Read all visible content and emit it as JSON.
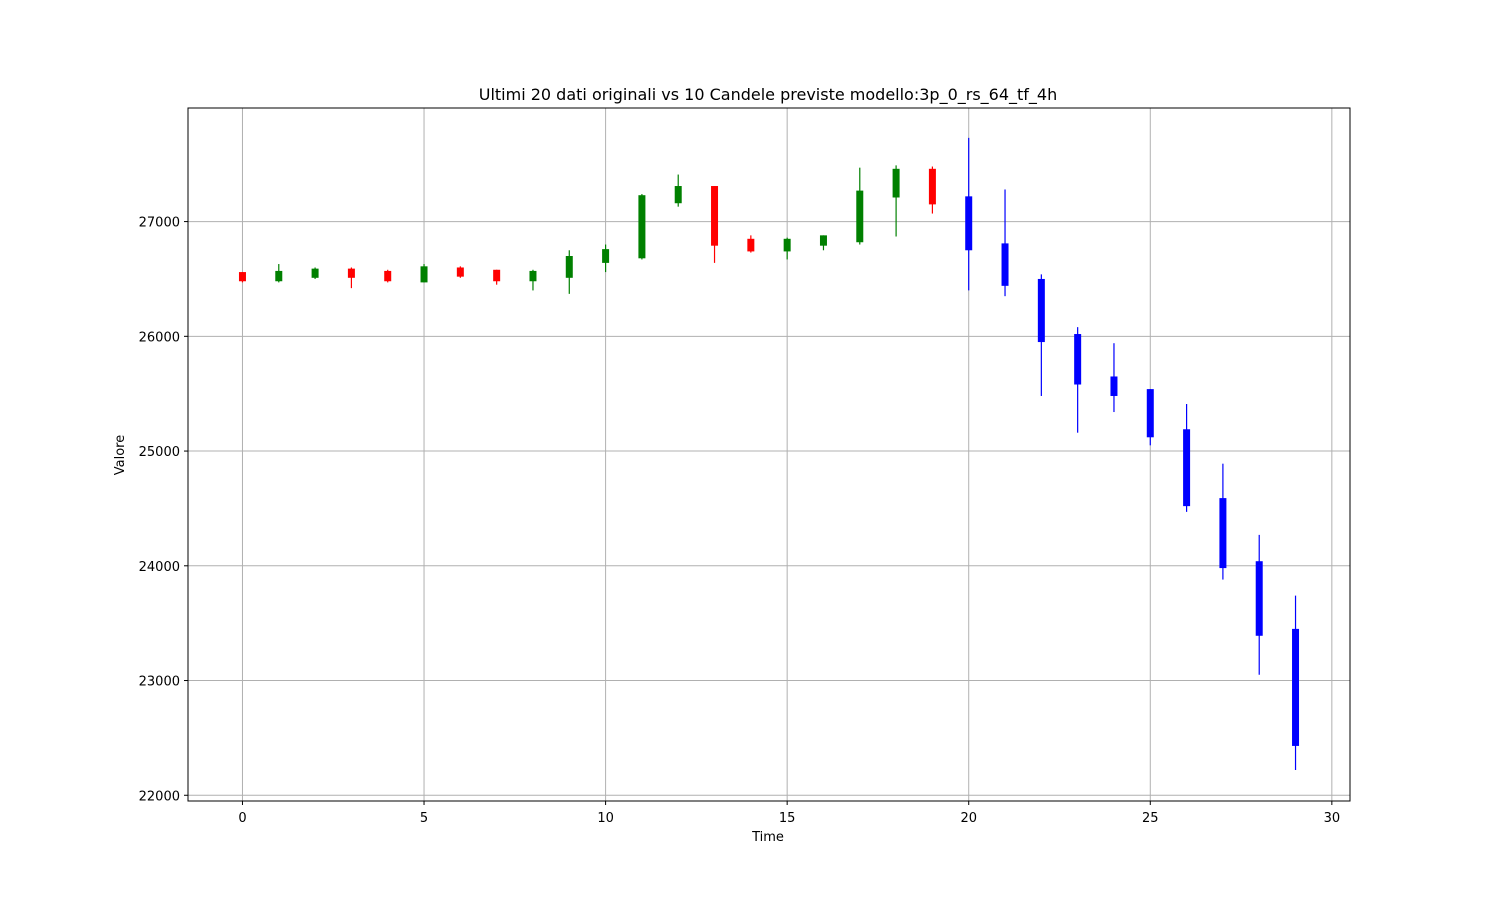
{
  "chart_data": {
    "type": "candlestick",
    "title": "Ultimi 20 dati originali vs 10 Candele previste modello:3p_0_rs_64_tf_4h",
    "xlabel": "Time",
    "ylabel": "Valore",
    "xlim": [
      -1.5,
      30.5
    ],
    "ylim": [
      21950,
      27990
    ],
    "xticks": [
      0,
      5,
      10,
      15,
      20,
      25,
      30
    ],
    "yticks": [
      22000,
      23000,
      24000,
      25000,
      26000,
      27000
    ],
    "grid": true,
    "colors": {
      "up": "#008000",
      "down": "#ff0000",
      "predicted": "#0000ff",
      "grid": "#b0b0b0"
    },
    "series": [
      {
        "kind": "original",
        "candles": [
          {
            "t": 0,
            "open": 26560,
            "close": 26480,
            "high": 26560,
            "low": 26470
          },
          {
            "t": 1,
            "open": 26480,
            "close": 26570,
            "high": 26630,
            "low": 26470
          },
          {
            "t": 2,
            "open": 26510,
            "close": 26590,
            "high": 26600,
            "low": 26500
          },
          {
            "t": 3,
            "open": 26590,
            "close": 26510,
            "high": 26600,
            "low": 26420
          },
          {
            "t": 4,
            "open": 26570,
            "close": 26480,
            "high": 26580,
            "low": 26470
          },
          {
            "t": 5,
            "open": 26470,
            "close": 26610,
            "high": 26630,
            "low": 26470
          },
          {
            "t": 6,
            "open": 26600,
            "close": 26520,
            "high": 26610,
            "low": 26510
          },
          {
            "t": 7,
            "open": 26580,
            "close": 26480,
            "high": 26580,
            "low": 26450
          },
          {
            "t": 8,
            "open": 26480,
            "close": 26570,
            "high": 26580,
            "low": 26400
          },
          {
            "t": 9,
            "open": 26510,
            "close": 26700,
            "high": 26750,
            "low": 26370
          },
          {
            "t": 10,
            "open": 26640,
            "close": 26760,
            "high": 26800,
            "low": 26560
          },
          {
            "t": 11,
            "open": 26680,
            "close": 27230,
            "high": 27240,
            "low": 26670
          },
          {
            "t": 12,
            "open": 27160,
            "close": 27310,
            "high": 27410,
            "low": 27130
          },
          {
            "t": 13,
            "open": 27310,
            "close": 26790,
            "high": 27310,
            "low": 26640
          },
          {
            "t": 14,
            "open": 26850,
            "close": 26740,
            "high": 26880,
            "low": 26730
          },
          {
            "t": 15,
            "open": 26740,
            "close": 26850,
            "high": 26860,
            "low": 26670
          },
          {
            "t": 16,
            "open": 26790,
            "close": 26880,
            "high": 26880,
            "low": 26750
          },
          {
            "t": 17,
            "open": 26820,
            "close": 27270,
            "high": 27470,
            "low": 26800
          },
          {
            "t": 18,
            "open": 27210,
            "close": 27460,
            "high": 27490,
            "low": 26870
          },
          {
            "t": 19,
            "open": 27460,
            "close": 27150,
            "high": 27480,
            "low": 27070
          }
        ]
      },
      {
        "kind": "predicted",
        "candles": [
          {
            "t": 20,
            "open": 27220,
            "close": 26750,
            "high": 27730,
            "low": 26400
          },
          {
            "t": 21,
            "open": 26810,
            "close": 26440,
            "high": 27280,
            "low": 26350
          },
          {
            "t": 22,
            "open": 26500,
            "close": 25950,
            "high": 26540,
            "low": 25480
          },
          {
            "t": 23,
            "open": 26020,
            "close": 25580,
            "high": 26080,
            "low": 25160
          },
          {
            "t": 24,
            "open": 25650,
            "close": 25480,
            "high": 25940,
            "low": 25340
          },
          {
            "t": 25,
            "open": 25540,
            "close": 25120,
            "high": 25540,
            "low": 25050
          },
          {
            "t": 26,
            "open": 25190,
            "close": 24520,
            "high": 25410,
            "low": 24470
          },
          {
            "t": 27,
            "open": 24590,
            "close": 23980,
            "high": 24890,
            "low": 23880
          },
          {
            "t": 28,
            "open": 24040,
            "close": 23390,
            "high": 24270,
            "low": 23050
          },
          {
            "t": 29,
            "open": 23450,
            "close": 22430,
            "high": 23740,
            "low": 22220
          }
        ]
      }
    ]
  }
}
